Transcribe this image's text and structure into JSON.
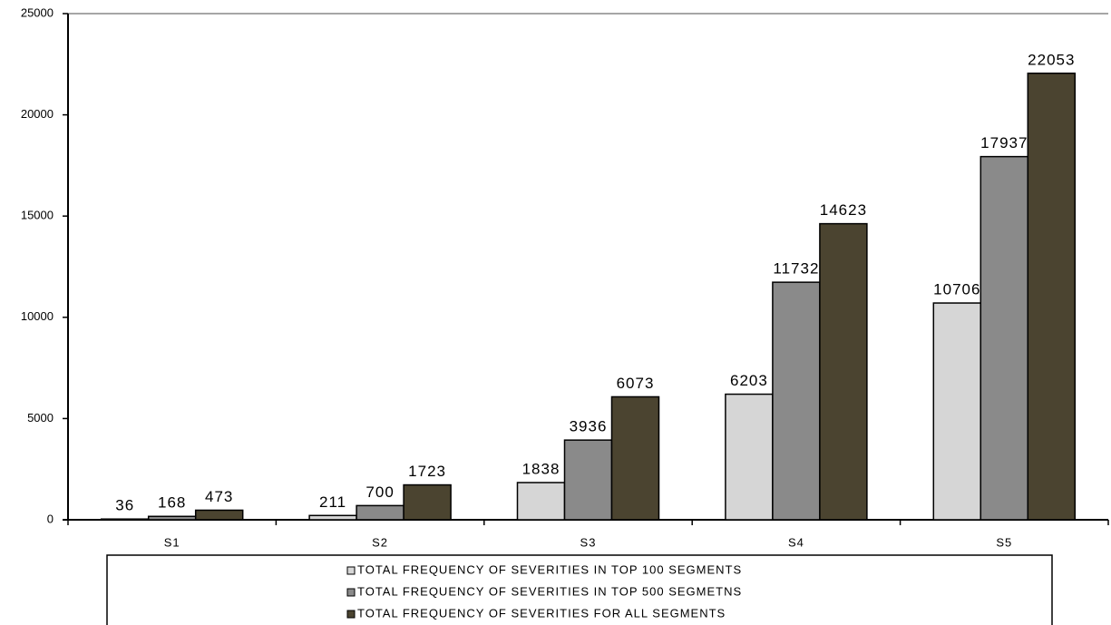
{
  "chart_data": {
    "type": "bar",
    "categories": [
      "S1",
      "S2",
      "S3",
      "S4",
      "S5"
    ],
    "series": [
      {
        "name": "TOTAL FREQUENCY OF SEVERITIES IN TOP 100 SEGMENTS",
        "color": "#d6d6d6",
        "values": [
          36,
          211,
          1838,
          6203,
          10706
        ]
      },
      {
        "name": "TOTAL FREQUENCY OF SEVERITIES IN TOP 500 SEGMETNS",
        "color": "#8a8a8a",
        "values": [
          168,
          700,
          3936,
          11732,
          17937
        ]
      },
      {
        "name": "TOTAL FREQUENCY OF SEVERITIES FOR ALL SEGMENTS",
        "color": "#4b4430",
        "values": [
          473,
          1723,
          6073,
          14623,
          22053
        ]
      }
    ],
    "ylim": [
      0,
      25000
    ],
    "yticks": [
      0,
      5000,
      10000,
      15000,
      20000,
      25000
    ],
    "grid": false,
    "legend": "bottom"
  }
}
